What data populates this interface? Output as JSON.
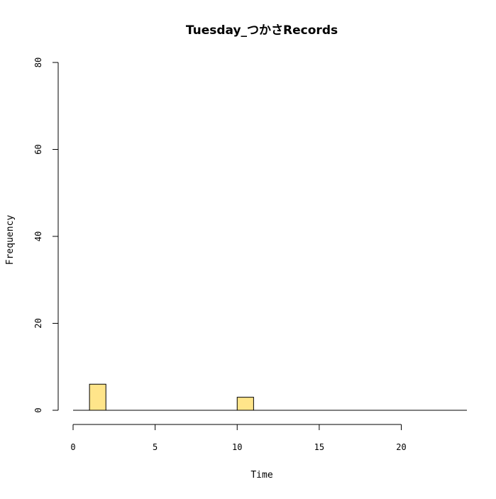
{
  "chart_data": {
    "type": "bar",
    "title": "Tuesday_つかさRecords",
    "xlabel": "Time",
    "ylabel": "Frequency",
    "xlim": [
      0,
      24
    ],
    "ylim": [
      0,
      80
    ],
    "x_ticks": [
      "0",
      "5",
      "10",
      "15",
      "20"
    ],
    "y_ticks": [
      "0",
      "20",
      "40",
      "60",
      "80"
    ],
    "bar_width": 1,
    "x": [
      1,
      10
    ],
    "values": [
      6,
      3
    ],
    "bar_color": "#FFE58A",
    "grid": false,
    "legend": "none"
  }
}
